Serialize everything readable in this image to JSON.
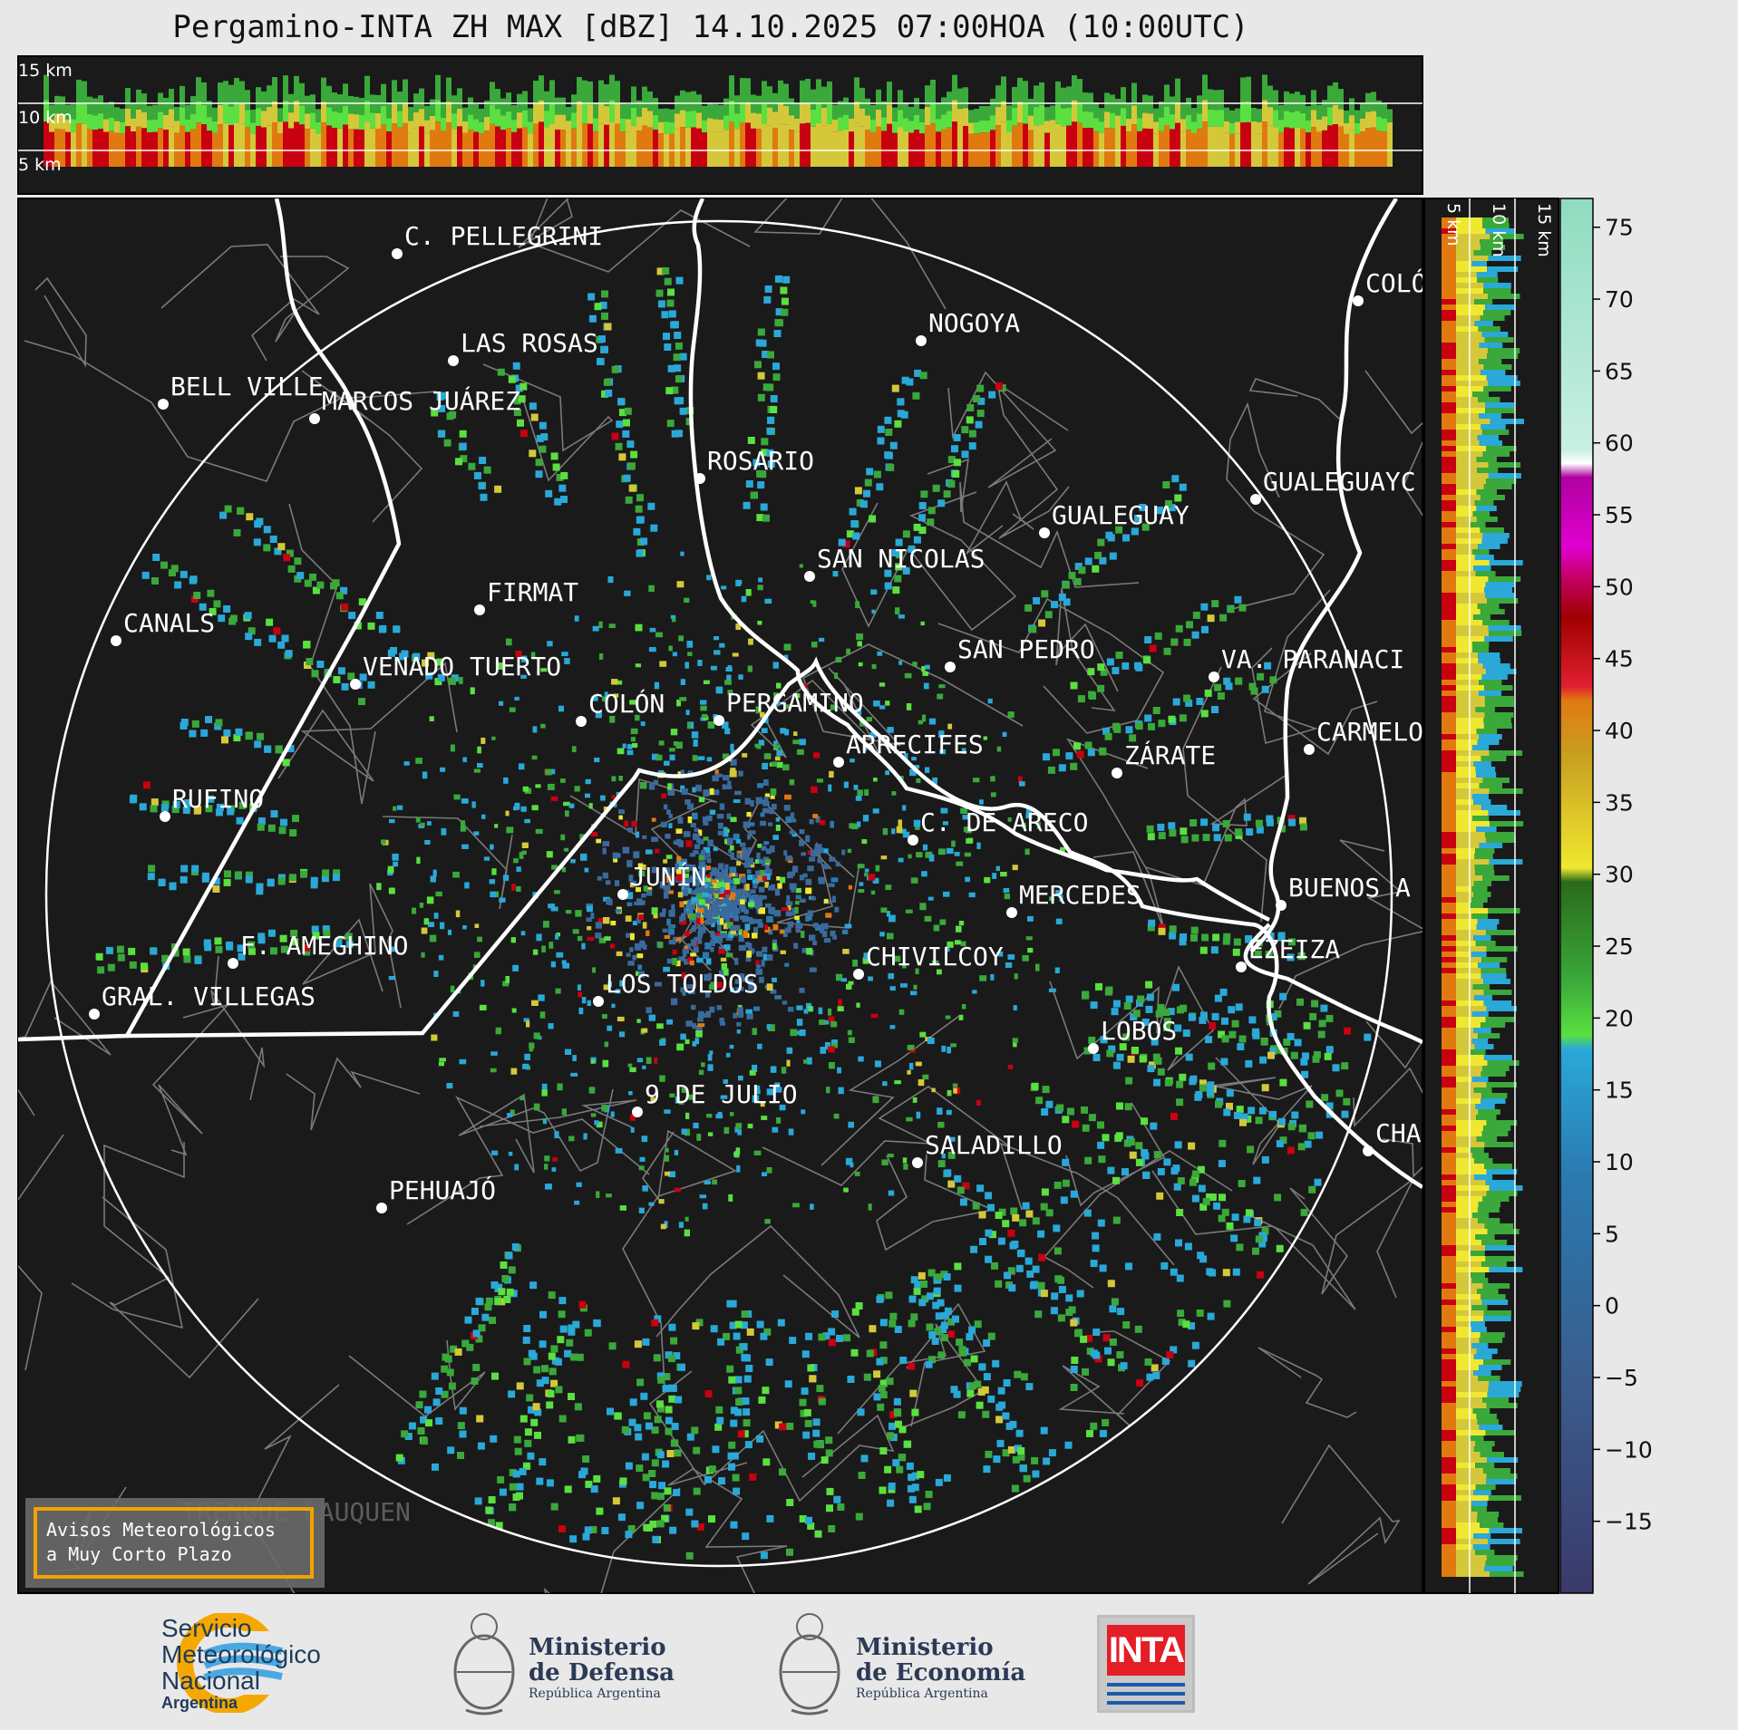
{
  "title": "Pergamino-INTA ZH MAX [dBZ] 14.10.2025 07:00HOA (10:00UTC)",
  "top_height_labels": [
    "15 km",
    "10 km",
    "5 km"
  ],
  "side_height_labels": [
    "5 km",
    "10 km",
    "15 km"
  ],
  "colorbar": {
    "ticks": [
      "75",
      "70",
      "65",
      "60",
      "55",
      "50",
      "45",
      "40",
      "35",
      "30",
      "25",
      "20",
      "15",
      "10",
      "5",
      "0",
      "−5",
      "−10",
      "−15"
    ],
    "tick_values": [
      75,
      70,
      65,
      60,
      55,
      50,
      45,
      40,
      35,
      30,
      25,
      20,
      15,
      10,
      5,
      0,
      -5,
      -10,
      -15
    ],
    "range": [
      -20,
      77
    ],
    "stops": [
      {
        "from": 58,
        "to": 77,
        "color": "#8fdcc0"
      },
      {
        "from": 60,
        "to": 62,
        "color": "#ffffff"
      },
      {
        "from": 51,
        "to": 58,
        "color": "#c800c8"
      },
      {
        "from": 49,
        "to": 51,
        "color": "#c8006e"
      },
      {
        "from": 42,
        "to": 49,
        "color": "#c80010"
      },
      {
        "from": 38,
        "to": 42,
        "color": "#e07a10"
      },
      {
        "from": 30,
        "to": 38,
        "color": "#d4c83a"
      },
      {
        "from": 20,
        "to": 30,
        "color": "#3aa83a"
      },
      {
        "from": 15,
        "to": 20,
        "color": "#2aa8d8"
      },
      {
        "from": -20,
        "to": 15,
        "color": "#3a5c8c"
      }
    ]
  },
  "cities": [
    {
      "name": "C. PELLEGRINI",
      "lon": 438,
      "lat": 280
    },
    {
      "name": "LAS ROSAS",
      "lon": 500,
      "lat": 398
    },
    {
      "name": "BELL VILLE",
      "lon": 180,
      "lat": 446
    },
    {
      "name": "MARCOS JUÁREZ",
      "lon": 347,
      "lat": 462
    },
    {
      "name": "NOGOYA",
      "lon": 1016,
      "lat": 376
    },
    {
      "name": "COLÓ",
      "lon": 1498,
      "lat": 332
    },
    {
      "name": "ROSARIO",
      "lon": 772,
      "lat": 528
    },
    {
      "name": "GUALEGUAYC",
      "lon": 1385,
      "lat": 551
    },
    {
      "name": "GUALEGUAY",
      "lon": 1152,
      "lat": 588
    },
    {
      "name": "SAN NICOLAS",
      "lon": 893,
      "lat": 636
    },
    {
      "name": "FIRMAT",
      "lon": 529,
      "lat": 673
    },
    {
      "name": "CANALS",
      "lon": 128,
      "lat": 707
    },
    {
      "name": "SAN PEDRO",
      "lon": 1048,
      "lat": 736
    },
    {
      "name": "VA. PARANACI",
      "lon": 1339,
      "lat": 747
    },
    {
      "name": "VENADO TUERTO",
      "lon": 392,
      "lat": 755
    },
    {
      "name": "COLÓN",
      "lon": 641,
      "lat": 796
    },
    {
      "name": "PERGAMINO",
      "lon": 793,
      "lat": 795
    },
    {
      "name": "CARMELO",
      "lon": 1444,
      "lat": 827
    },
    {
      "name": "ARRECIFES",
      "lon": 925,
      "lat": 841
    },
    {
      "name": "ZÁRATE",
      "lon": 1232,
      "lat": 853
    },
    {
      "name": "RUFINO",
      "lon": 182,
      "lat": 901
    },
    {
      "name": "C. DE ARECO",
      "lon": 1007,
      "lat": 927
    },
    {
      "name": "JUNÍN",
      "lon": 687,
      "lat": 987
    },
    {
      "name": "MERCEDES",
      "lon": 1116,
      "lat": 1007
    },
    {
      "name": "BUENOS A",
      "lon": 1413,
      "lat": 999
    },
    {
      "name": "F. AMEGHINO",
      "lon": 257,
      "lat": 1063
    },
    {
      "name": "EZEIZA",
      "lon": 1369,
      "lat": 1067
    },
    {
      "name": "CHIVILCOY",
      "lon": 947,
      "lat": 1075
    },
    {
      "name": "GRAL. VILLEGAS",
      "lon": 104,
      "lat": 1119
    },
    {
      "name": "LOS TOLDOS",
      "lon": 660,
      "lat": 1105
    },
    {
      "name": "LOBOS",
      "lon": 1206,
      "lat": 1157
    },
    {
      "name": "9 DE JULIO",
      "lon": 703,
      "lat": 1227
    },
    {
      "name": "CHA",
      "lon": 1509,
      "lat": 1270
    },
    {
      "name": "SALADILLO",
      "lon": 1012,
      "lat": 1283
    },
    {
      "name": "PEHUAJÓ",
      "lon": 421,
      "lat": 1333
    },
    {
      "name": "TRENQUE LAUQUEN",
      "lon": 0,
      "lat": 0,
      "faint": true
    }
  ],
  "warning_box": {
    "line1": "Avisos Meteorológicos",
    "line2": "a Muy Corto Plazo"
  },
  "logos": {
    "smn": {
      "line1": "Servicio",
      "line2": "Meteorológico",
      "line3": "Nacional",
      "line4": "Argentina"
    },
    "defensa": {
      "line1": "Ministerio",
      "line2": "de Defensa",
      "line3": "República Argentina"
    },
    "economia": {
      "line1": "Ministerio",
      "line2": "de Economía",
      "line3": "República Argentina"
    },
    "inta": "INTA"
  },
  "colors": {
    "background": "#1a1a1a",
    "page": "#e8e8e8",
    "border": "#ffffff",
    "boundaries": "#7a7a7a",
    "warning_border": "#f2a300"
  }
}
